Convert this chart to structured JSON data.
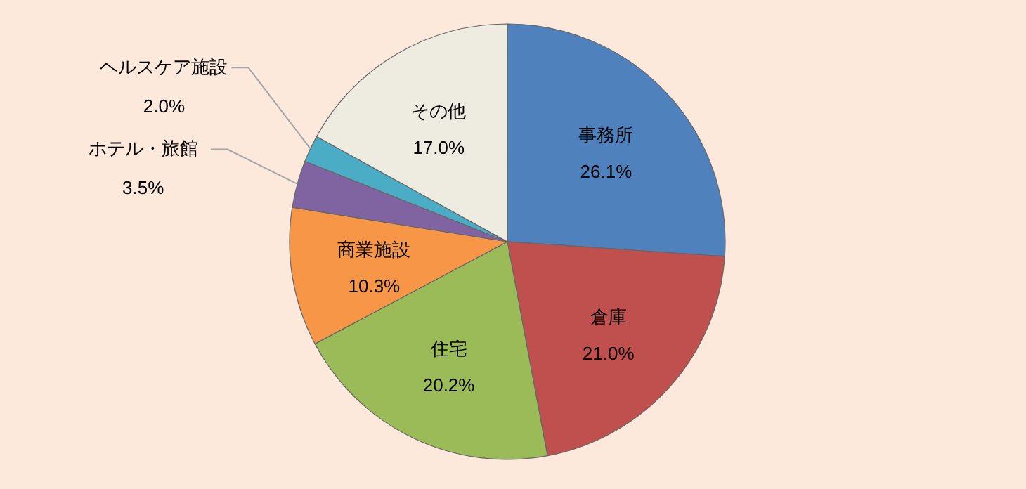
{
  "chart_data": {
    "type": "pie",
    "categories": [
      "事務所",
      "倉庫",
      "住宅",
      "商業施設",
      "ホテル・旅館",
      "ヘルスケア施設",
      "その他"
    ],
    "values": [
      26.1,
      21.0,
      20.2,
      10.3,
      3.5,
      2.0,
      17.0
    ],
    "value_labels": [
      "26.1%",
      "21.0%",
      "20.2%",
      "10.3%",
      "3.5%",
      "2.0%",
      "17.0%"
    ],
    "colors": [
      "#4f81bd",
      "#c0504d",
      "#9bbb59",
      "#f79646",
      "#8064a2",
      "#4bacc6",
      "#eeece1"
    ]
  }
}
